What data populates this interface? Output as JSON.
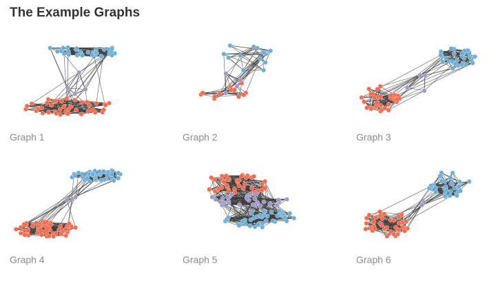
{
  "page": {
    "title": "The Example Graphs"
  },
  "colors": {
    "community_a": "#6baed6",
    "community_b": "#fb6a4a",
    "bridge": "#9e9ac8",
    "edge": "#3d3d3d",
    "caption": "#8c8c8c",
    "title": "#333333"
  },
  "graphs": [
    {
      "label": "Graph 1",
      "communities": [
        {
          "color": "community_a",
          "nodes": 32
        },
        {
          "color": "community_b",
          "nodes": 40
        },
        {
          "color": "bridge",
          "nodes": 4
        }
      ]
    },
    {
      "label": "Graph 2",
      "communities": [
        {
          "color": "community_a",
          "nodes": 14
        },
        {
          "color": "community_b",
          "nodes": 12
        },
        {
          "color": "bridge",
          "nodes": 4
        }
      ]
    },
    {
      "label": "Graph 3",
      "communities": [
        {
          "color": "community_a",
          "nodes": 30
        },
        {
          "color": "community_b",
          "nodes": 34
        },
        {
          "color": "bridge",
          "nodes": 4
        }
      ]
    },
    {
      "label": "Graph 4",
      "communities": [
        {
          "color": "community_a",
          "nodes": 45
        },
        {
          "color": "community_b",
          "nodes": 50
        },
        {
          "color": "bridge",
          "nodes": 3
        }
      ]
    },
    {
      "label": "Graph 5",
      "communities": [
        {
          "color": "community_b",
          "nodes": 40
        },
        {
          "color": "bridge",
          "nodes": 30
        },
        {
          "color": "community_a",
          "nodes": 45
        }
      ]
    },
    {
      "label": "Graph 6",
      "communities": [
        {
          "color": "community_a",
          "nodes": 36
        },
        {
          "color": "community_b",
          "nodes": 40
        },
        {
          "color": "bridge",
          "nodes": 2
        }
      ]
    }
  ]
}
